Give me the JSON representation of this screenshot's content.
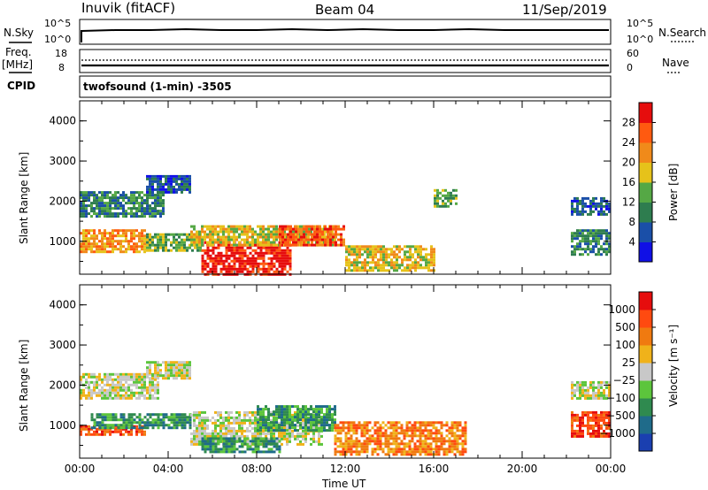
{
  "header": {
    "station": "Inuvik (fitACF)",
    "beam": "Beam 04",
    "date": "11/Sep/2019"
  },
  "top_panels": {
    "nsky_label": "N.Sky",
    "nsky_ticks": [
      "10^5",
      "10^0"
    ],
    "nsearch_label": "N.Search",
    "nsearch_ticks": [
      "10^5",
      "10^0"
    ],
    "freq_label": "Freq.",
    "freq_unit": "[MHz]",
    "freq_ticks": [
      "18",
      "8"
    ],
    "nave_label": "Nave",
    "nave_ticks": [
      "60",
      "0"
    ],
    "cpid_label": "CPID",
    "cpid_value": "twofsound (1-min) -3505"
  },
  "chart_data": [
    {
      "type": "heatmap",
      "name": "power",
      "xlabel": "",
      "ylabel": "Slant Range [km]",
      "y_ticks": [
        "1000",
        "2000",
        "3000",
        "4000"
      ],
      "ylim": [
        180,
        4500
      ],
      "xlim_hours": [
        0,
        24
      ],
      "colorbar_label": "Power [dB]",
      "colorbar_ticks": [
        "4",
        "8",
        "12",
        "16",
        "20",
        "24",
        "28"
      ],
      "colorbar_colors": [
        "#1010e6",
        "#1a4fa8",
        "#2e7d4f",
        "#55a845",
        "#e6c21a",
        "#f08a1a",
        "#ff5a10",
        "#e60d0d"
      ],
      "regions": [
        {
          "t0": 0.0,
          "t1": 3.0,
          "r0": 750,
          "r1": 1300,
          "level": 5
        },
        {
          "t0": 0.0,
          "t1": 3.8,
          "r0": 1650,
          "r1": 2250,
          "level": 2
        },
        {
          "t0": 3.0,
          "t1": 5.0,
          "r0": 2200,
          "r1": 2650,
          "level": 1
        },
        {
          "t0": 3.0,
          "t1": 5.5,
          "r0": 800,
          "r1": 1200,
          "level": 3
        },
        {
          "t0": 5.5,
          "t1": 9.5,
          "r0": 200,
          "r1": 1000,
          "level": 7
        },
        {
          "t0": 5.0,
          "t1": 11.5,
          "r0": 900,
          "r1": 1400,
          "level": 4
        },
        {
          "t0": 9.0,
          "t1": 12.0,
          "r0": 900,
          "r1": 1400,
          "level": 6
        },
        {
          "t0": 12.0,
          "t1": 16.0,
          "r0": 300,
          "r1": 900,
          "level": 4
        },
        {
          "t0": 16.0,
          "t1": 17.0,
          "r0": 1900,
          "r1": 2300,
          "level": 3
        },
        {
          "t0": 22.2,
          "t1": 24.0,
          "r0": 1700,
          "r1": 2100,
          "level": 1
        },
        {
          "t0": 22.2,
          "t1": 24.0,
          "r0": 700,
          "r1": 1300,
          "level": 2
        }
      ]
    },
    {
      "type": "heatmap",
      "name": "velocity",
      "xlabel": "Time UT",
      "ylabel": "Slant Range [km]",
      "x_ticks": [
        "00:00",
        "04:00",
        "08:00",
        "12:00",
        "16:00",
        "20:00",
        "00:00"
      ],
      "y_ticks": [
        "1000",
        "2000",
        "3000",
        "4000"
      ],
      "ylim": [
        180,
        4500
      ],
      "xlim_hours": [
        0,
        24
      ],
      "colorbar_label": "Velocity [m s⁻¹]",
      "colorbar_ticks": [
        "1000",
        "500",
        "100",
        "25",
        "−25",
        "−100",
        "−500",
        "−1000"
      ],
      "colorbar_colors": [
        "#1a3fb0",
        "#1f6b8a",
        "#2f8a4f",
        "#5cc53c",
        "#c8c8c8",
        "#f0b21a",
        "#f07a10",
        "#ff4a10",
        "#e60d0d"
      ],
      "regions": [
        {
          "t0": 0.0,
          "t1": 3.5,
          "r0": 1650,
          "r1": 2300,
          "level": 4
        },
        {
          "t0": 3.0,
          "t1": 5.0,
          "r0": 2150,
          "r1": 2600,
          "level": 4
        },
        {
          "t0": 0.0,
          "t1": 3.0,
          "r0": 750,
          "r1": 1000,
          "level": 7
        },
        {
          "t0": 0.5,
          "t1": 5.0,
          "r0": 950,
          "r1": 1300,
          "level": 2
        },
        {
          "t0": 5.0,
          "t1": 11.0,
          "r0": 500,
          "r1": 1350,
          "level": 4
        },
        {
          "t0": 5.5,
          "t1": 9.0,
          "r0": 350,
          "r1": 700,
          "level": 2
        },
        {
          "t0": 8.0,
          "t1": 11.5,
          "r0": 900,
          "r1": 1500,
          "level": 2
        },
        {
          "t0": 11.5,
          "t1": 17.5,
          "r0": 250,
          "r1": 1100,
          "level": 6
        },
        {
          "t0": 22.2,
          "t1": 24.0,
          "r0": 700,
          "r1": 1350,
          "level": 7
        },
        {
          "t0": 22.2,
          "t1": 24.0,
          "r0": 1700,
          "r1": 2100,
          "level": 4
        }
      ]
    }
  ]
}
